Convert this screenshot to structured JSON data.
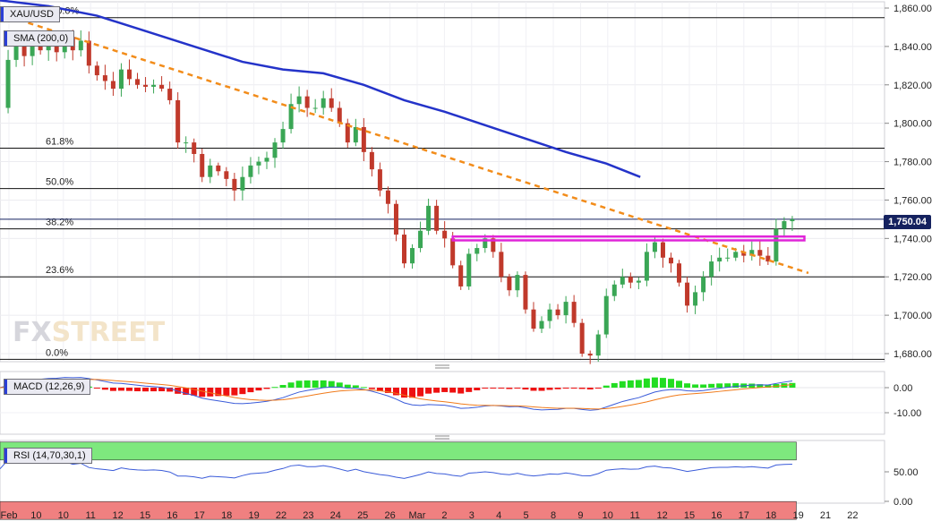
{
  "chart_data": [
    {
      "type": "candlestick",
      "symbol": "XAU/USD",
      "indicator_label": "SMA (200,0)",
      "last_price": "1,750.04",
      "ylim": [
        1675,
        1864
      ],
      "y_ticks": [
        1680,
        1700,
        1720,
        1740,
        1760,
        1780,
        1800,
        1820,
        1840,
        1860
      ],
      "y_tick_labels": [
        "1,680.00",
        "1,700.00",
        "1,720.00",
        "1,740.00",
        "1,760.00",
        "1,780.00",
        "1,800.00",
        "1,820.00",
        "1,840.00",
        "1,860.00"
      ],
      "x_labels": [
        "Feb",
        "10",
        "10",
        "11",
        "12",
        "15",
        "16",
        "17",
        "18",
        "19",
        "22",
        "23",
        "24",
        "25",
        "26",
        "Mar",
        "2",
        "3",
        "4",
        "5",
        "8",
        "9",
        "10",
        "11",
        "12",
        "15",
        "16",
        "17",
        "18",
        "19",
        "21",
        "22"
      ],
      "fib_levels": [
        {
          "label": "100.0%",
          "value": 1855
        },
        {
          "label": "61.8%",
          "value": 1787
        },
        {
          "label": "50.0%",
          "value": 1766
        },
        {
          "label": "38.2%",
          "value": 1745
        },
        {
          "label": "23.6%",
          "value": 1720
        },
        {
          "label": "0.0%",
          "value": 1677
        }
      ],
      "resistance_zone": [
        1739,
        1741
      ],
      "trendline": [
        [
          0,
          1857
        ],
        [
          100,
          1722
        ]
      ],
      "sma_200": [
        [
          0,
          1864
        ],
        [
          6,
          1861
        ],
        [
          12,
          1856
        ],
        [
          18,
          1848
        ],
        [
          24,
          1840
        ],
        [
          30,
          1832
        ],
        [
          35,
          1828
        ],
        [
          40,
          1826
        ],
        [
          45,
          1820
        ],
        [
          50,
          1812
        ],
        [
          55,
          1806
        ],
        [
          60,
          1799
        ],
        [
          65,
          1792
        ],
        [
          70,
          1785
        ],
        [
          75,
          1779
        ],
        [
          79.2,
          1772
        ]
      ],
      "price_anchors": [
        [
          0,
          1808
        ],
        [
          1,
          1833
        ],
        [
          2,
          1840
        ],
        [
          3,
          1835
        ],
        [
          4,
          1842
        ],
        [
          5,
          1838
        ],
        [
          6,
          1841
        ],
        [
          7,
          1837
        ],
        [
          8,
          1845
        ],
        [
          9,
          1838
        ],
        [
          10,
          1843
        ],
        [
          11,
          1830
        ],
        [
          12,
          1825
        ],
        [
          13,
          1822
        ],
        [
          14,
          1818
        ],
        [
          15,
          1828
        ],
        [
          16,
          1823
        ],
        [
          17,
          1820
        ],
        [
          18,
          1819
        ],
        [
          19,
          1820
        ],
        [
          20,
          1818
        ],
        [
          21,
          1812
        ],
        [
          22,
          1790
        ],
        [
          23,
          1790
        ],
        [
          24,
          1784
        ],
        [
          25,
          1772
        ],
        [
          26,
          1778
        ],
        [
          27,
          1775
        ],
        [
          28,
          1771
        ],
        [
          29,
          1765
        ],
        [
          30,
          1772
        ],
        [
          31,
          1778
        ],
        [
          32,
          1780
        ],
        [
          33,
          1782
        ],
        [
          34,
          1790
        ],
        [
          35,
          1797
        ],
        [
          36,
          1810
        ],
        [
          37,
          1814
        ],
        [
          38,
          1808
        ],
        [
          39,
          1808
        ],
        [
          40,
          1813
        ],
        [
          41,
          1808
        ],
        [
          42,
          1800
        ],
        [
          43,
          1790
        ],
        [
          44,
          1798
        ],
        [
          45,
          1785
        ],
        [
          46,
          1776
        ],
        [
          47,
          1765
        ],
        [
          48,
          1758
        ],
        [
          49,
          1742
        ],
        [
          50,
          1727
        ],
        [
          51,
          1735
        ],
        [
          52,
          1744
        ],
        [
          53,
          1757
        ],
        [
          54,
          1744
        ],
        [
          55,
          1740
        ],
        [
          56,
          1726
        ],
        [
          57,
          1715
        ],
        [
          58,
          1732
        ],
        [
          59,
          1735
        ],
        [
          60,
          1740
        ],
        [
          61,
          1733
        ],
        [
          62,
          1720
        ],
        [
          63,
          1713
        ],
        [
          64,
          1721
        ],
        [
          65,
          1703
        ],
        [
          66,
          1693
        ],
        [
          67,
          1697
        ],
        [
          68,
          1703
        ],
        [
          69,
          1700
        ],
        [
          70,
          1707
        ],
        [
          71,
          1696
        ],
        [
          72,
          1680
        ],
        [
          73,
          1679
        ],
        [
          74,
          1690
        ],
        [
          75,
          1710
        ],
        [
          76,
          1716
        ],
        [
          77,
          1720
        ],
        [
          78,
          1717
        ],
        [
          79,
          1718
        ],
        [
          80,
          1733
        ],
        [
          81,
          1738
        ],
        [
          82,
          1730
        ],
        [
          83,
          1727
        ],
        [
          84,
          1717
        ],
        [
          85,
          1705
        ],
        [
          86,
          1712
        ],
        [
          87,
          1720
        ],
        [
          88,
          1728
        ],
        [
          89,
          1730
        ],
        [
          90,
          1730
        ],
        [
          91,
          1733
        ],
        [
          92,
          1731
        ],
        [
          93,
          1734
        ],
        [
          94,
          1731
        ],
        [
          95,
          1728
        ],
        [
          96,
          1745
        ],
        [
          97,
          1749
        ],
        [
          98,
          1750
        ]
      ]
    },
    {
      "type": "macd",
      "label": "MACD (12,26,9)",
      "ylim": [
        -13,
        3
      ],
      "y_ticks": [
        0,
        -10
      ],
      "y_tick_labels": [
        "0.00",
        "-10.00"
      ]
    },
    {
      "type": "rsi",
      "label": "RSI (14,70,30,1)",
      "ylim": [
        0,
        70
      ],
      "overbought": 70,
      "oversold": 30,
      "y_ticks": [
        50,
        0
      ],
      "y_tick_labels": [
        "50.00",
        "0.00"
      ]
    }
  ],
  "colors": {
    "up": "#3aa655",
    "down": "#c0392b",
    "sma": "#2433c9",
    "trendline": "#f28c1a",
    "resistance": "#e024d8",
    "macd_line": "#3a5bd9",
    "signal_line": "#f07a1a",
    "hist_pos": "#22dd22",
    "hist_neg": "#ee1111",
    "rsi_line": "#3a5bd9",
    "rsi_overbought": "#7ee87e",
    "rsi_oversold": "#f08080"
  },
  "watermark": {
    "part1": "FX",
    "part2": "STREET"
  }
}
